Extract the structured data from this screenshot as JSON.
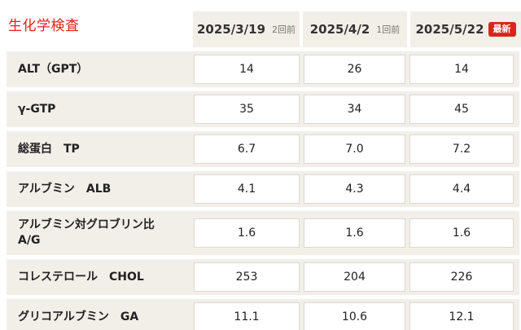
{
  "title": "生化学検査",
  "colors": {
    "accent_red": "#e6211a",
    "badge_red": "#d9251a",
    "row_bg": "#f2efe9",
    "cell_border": "#dcd8d2"
  },
  "header": {
    "cols": [
      {
        "date": "2025/3/19",
        "tag": "2回前"
      },
      {
        "date": "2025/4/2",
        "tag": "1回前"
      },
      {
        "date": "2025/5/22",
        "tag": "最新"
      }
    ]
  },
  "rows": [
    {
      "label": "ALT（GPT）",
      "values": [
        "14",
        "26",
        "14"
      ]
    },
    {
      "label": "γ-GTP",
      "values": [
        "35",
        "34",
        "45"
      ]
    },
    {
      "label": "総蛋白　TP",
      "values": [
        "6.7",
        "7.0",
        "7.2"
      ]
    },
    {
      "label": "アルブミン　ALB",
      "values": [
        "4.1",
        "4.3",
        "4.4"
      ]
    },
    {
      "label": "アルブミン対グロブリン比",
      "label2": "A/G",
      "values": [
        "1.6",
        "1.6",
        "1.6"
      ]
    },
    {
      "label": "コレステロール　CHOL",
      "values": [
        "253",
        "204",
        "226"
      ]
    },
    {
      "label": "グリコアルブミン　GA",
      "values": [
        "11.1",
        "10.6",
        "12.1"
      ]
    }
  ]
}
